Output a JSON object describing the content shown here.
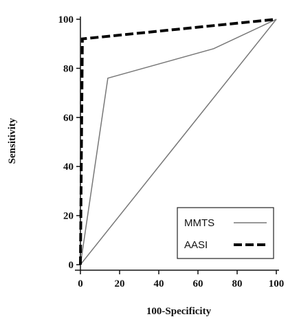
{
  "chart_data": {
    "type": "line",
    "xlabel": "100-Specificity",
    "ylabel": "Sensitivity",
    "xlim": [
      0,
      100
    ],
    "ylim": [
      0,
      100
    ],
    "xticks": [
      0,
      20,
      40,
      60,
      80,
      100
    ],
    "yticks": [
      0,
      20,
      40,
      60,
      80,
      100
    ],
    "grid": false,
    "legend_position": "bottom-right",
    "series": [
      {
        "name": "MMTS",
        "style": "solid",
        "color": "#777777",
        "points": [
          [
            0,
            0
          ],
          [
            14,
            76
          ],
          [
            68,
            88
          ],
          [
            100,
            100
          ]
        ]
      },
      {
        "name": "AASI",
        "style": "dashed",
        "color": "#000000",
        "points": [
          [
            0,
            0
          ],
          [
            1,
            92
          ],
          [
            100,
            100
          ]
        ]
      }
    ],
    "reference_line": {
      "color": "#777777",
      "points": [
        [
          0,
          0
        ],
        [
          100,
          100
        ]
      ]
    }
  }
}
